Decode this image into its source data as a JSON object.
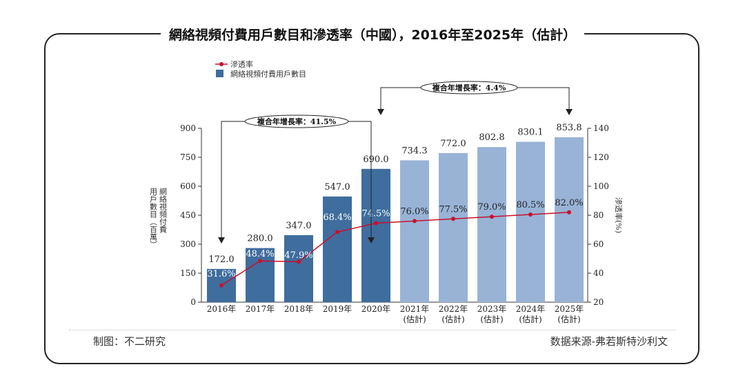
{
  "title": "網絡視頻付費用戶數目和滲透率（中國），2016年至2025年（估計）",
  "footer": {
    "left": "制图：不二研究",
    "right": "数据来源-弗若斯特沙利文"
  },
  "colors": {
    "actual": "#3f6d9e",
    "estimate": "#98b3d6",
    "line": "#c8102e"
  },
  "chart_data": {
    "type": "bar",
    "categories": [
      "2016年",
      "2017年",
      "2018年",
      "2019年",
      "2020年",
      "2021年\n(估計)",
      "2022年\n(估計)",
      "2023年\n(估計)",
      "2024年\n(估計)",
      "2025年\n(估計)"
    ],
    "legend": [
      "滲透率",
      "網絡視頻付費用戶數目"
    ],
    "legend_placement": "top-left",
    "series": [
      {
        "name": "網絡視頻付費用戶數目",
        "type": "bar",
        "axis": "left",
        "values": [
          172.0,
          280.0,
          347.0,
          547.0,
          690.0,
          734.3,
          772.0,
          802.8,
          830.1,
          853.8
        ],
        "labels": [
          "172.0",
          "280.0",
          "347.0",
          "547.0",
          "690.0",
          "734.3",
          "772.0",
          "802.8",
          "830.1",
          "853.8"
        ]
      },
      {
        "name": "滲透率",
        "type": "line",
        "axis": "right",
        "values": [
          31.6,
          48.4,
          47.9,
          68.4,
          74.5,
          76.0,
          77.5,
          79.0,
          80.5,
          82.0
        ],
        "labels": [
          "31.6%",
          "48.4%",
          "47.9%",
          "68.4%",
          "74.5%",
          "76.0%",
          "77.5%",
          "79.0%",
          "80.5%",
          "82.0%"
        ]
      }
    ],
    "ylabel": "網絡視頻付費用戶數目（百萬）",
    "y2label": "滲透率(%)",
    "ylim": [
      0,
      900
    ],
    "yticks": [
      0,
      150,
      300,
      450,
      600,
      750,
      900
    ],
    "y2lim": [
      20,
      140
    ],
    "y2ticks": [
      20,
      40,
      60,
      80,
      100,
      120,
      140
    ],
    "annotations": [
      {
        "text": "複合年增長率：41.5%",
        "from": "2016年",
        "to": "2020年"
      },
      {
        "text": "複合年增長率：4.4%",
        "from": "2020年",
        "to": "2025年"
      }
    ]
  }
}
